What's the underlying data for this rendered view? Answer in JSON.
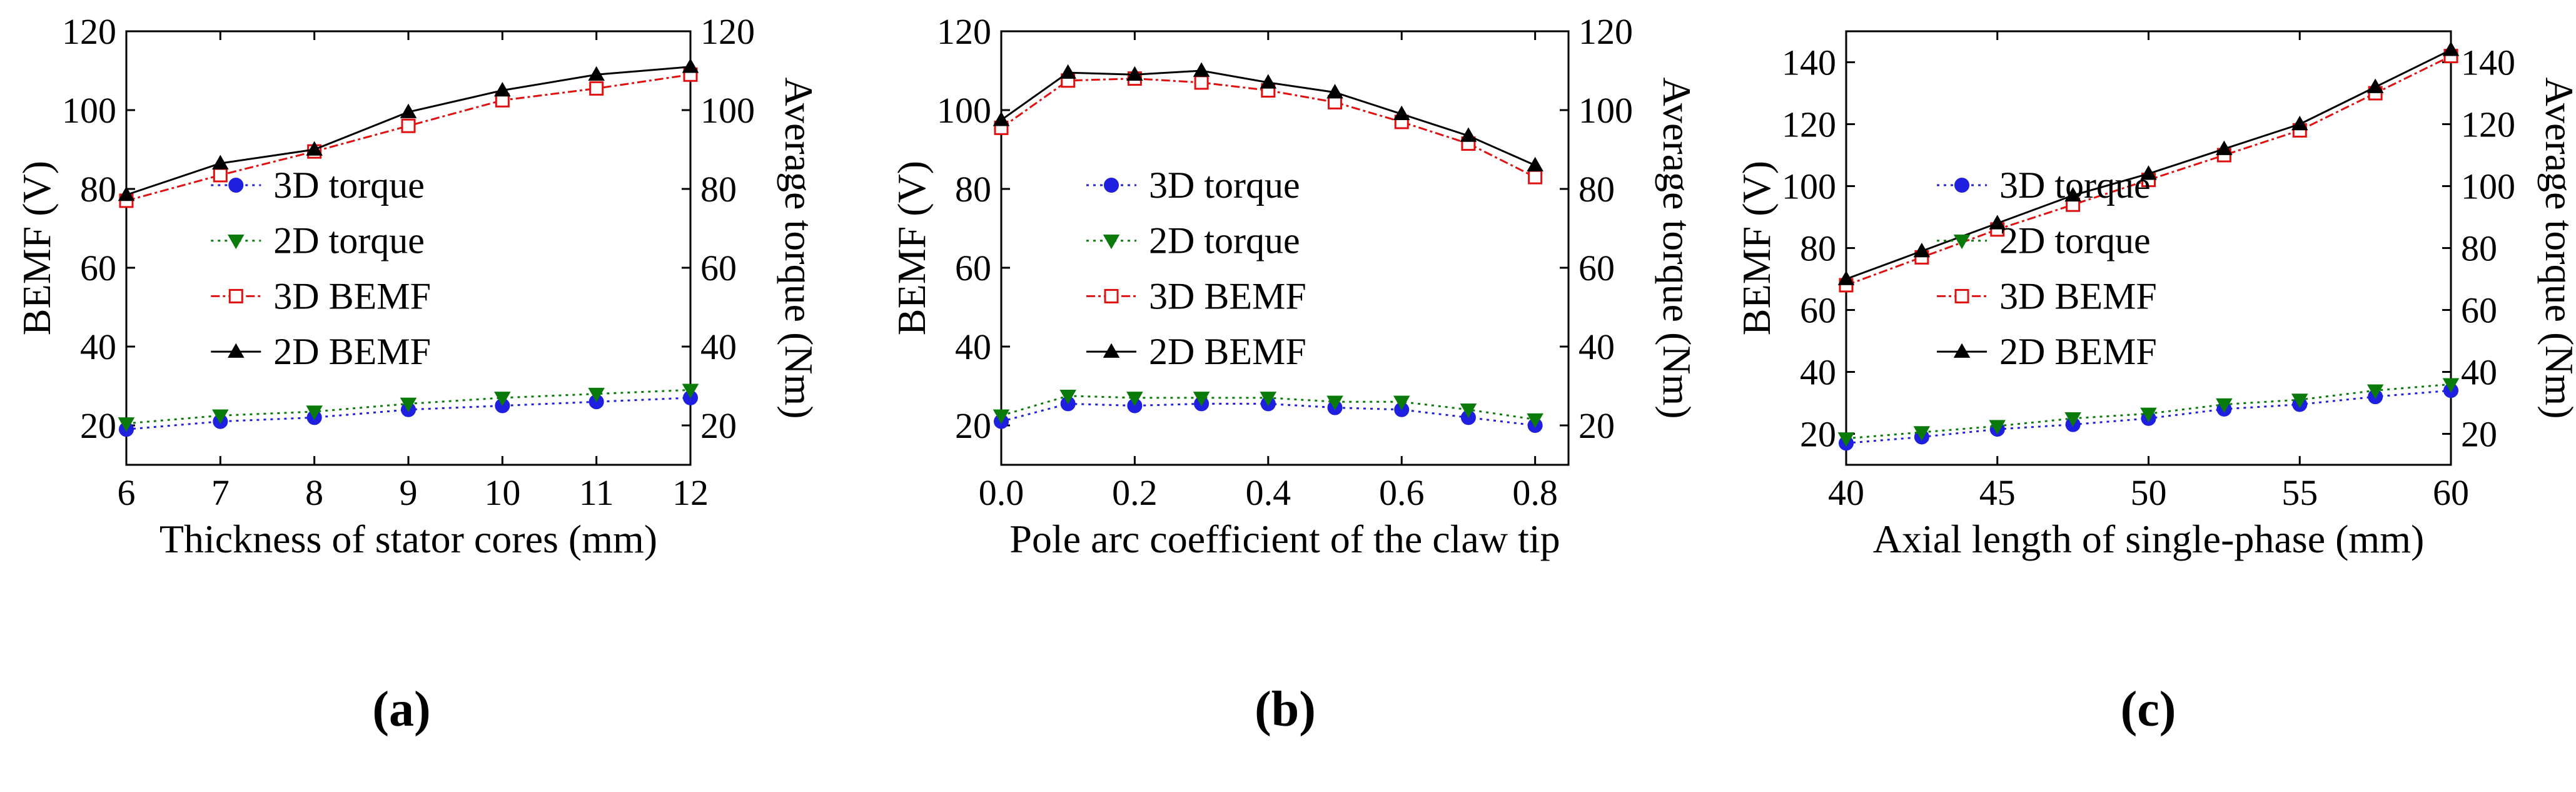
{
  "figure": {
    "captions": [
      "(a)",
      "(b)",
      "(c)"
    ]
  },
  "colors": {
    "torque3d": "#1f1fe0",
    "torque2d": "#0a7a0a",
    "bemf3d": "#e01010",
    "bemf2d": "#000000"
  },
  "chart_data": [
    {
      "id": "a",
      "type": "line",
      "caption": "(a)",
      "xlabel": "Thickness of stator cores (mm)",
      "ylabel": "BEMF (V)",
      "y2label": "Average torque (Nm)",
      "x": [
        6,
        7,
        8,
        9,
        10,
        11,
        12
      ],
      "xlim": [
        6,
        12
      ],
      "xticks": [
        6,
        7,
        8,
        9,
        10,
        11,
        12
      ],
      "xtick_labels": [
        "6",
        "7",
        "8",
        "9",
        "10",
        "11",
        "12"
      ],
      "ylim": [
        10,
        120
      ],
      "yticks": [
        20,
        40,
        60,
        80,
        100,
        120
      ],
      "ytick_labels": [
        "20",
        "40",
        "60",
        "80",
        "100",
        "120"
      ],
      "y2lim": [
        10,
        120
      ],
      "y2ticks": [
        20,
        40,
        60,
        80,
        100,
        120
      ],
      "y2tick_labels": [
        "20",
        "40",
        "60",
        "80",
        "100",
        "120"
      ],
      "legend_position": "center",
      "series": [
        {
          "name": "3D torque",
          "axis": "y2",
          "style": "torque3d",
          "values": [
            19,
            21,
            22,
            24,
            25,
            26,
            27
          ]
        },
        {
          "name": "2D torque",
          "axis": "y2",
          "style": "torque2d",
          "values": [
            20.5,
            22.5,
            23.5,
            25.5,
            27,
            28,
            29
          ]
        },
        {
          "name": "3D BEMF",
          "axis": "y",
          "style": "bemf3d",
          "values": [
            77,
            83.5,
            89.5,
            96,
            102.5,
            105.5,
            109
          ]
        },
        {
          "name": "2D BEMF",
          "axis": "y",
          "style": "bemf2d",
          "values": [
            78.5,
            86.5,
            90,
            99.5,
            105,
            109,
            111
          ]
        }
      ]
    },
    {
      "id": "b",
      "type": "line",
      "caption": "(b)",
      "xlabel": "Pole arc coefficient of the claw tip",
      "ylabel": "BEMF (V)",
      "y2label": "Average torque (Nm)",
      "x": [
        0.0,
        0.1,
        0.2,
        0.3,
        0.4,
        0.5,
        0.6,
        0.7,
        0.8
      ],
      "xlim": [
        0.0,
        0.85
      ],
      "xticks": [
        0.0,
        0.2,
        0.4,
        0.6,
        0.8
      ],
      "xtick_labels": [
        "0.0",
        "0.2",
        "0.4",
        "0.6",
        "0.8"
      ],
      "ylim": [
        10,
        120
      ],
      "yticks": [
        20,
        40,
        60,
        80,
        100,
        120
      ],
      "ytick_labels": [
        "20",
        "40",
        "60",
        "80",
        "100",
        "120"
      ],
      "y2lim": [
        10,
        120
      ],
      "y2ticks": [
        20,
        40,
        60,
        80,
        100,
        120
      ],
      "y2tick_labels": [
        "20",
        "40",
        "60",
        "80",
        "100",
        "120"
      ],
      "legend_position": "center",
      "series": [
        {
          "name": "3D torque",
          "axis": "y2",
          "style": "torque3d",
          "values": [
            21,
            25.5,
            25,
            25.5,
            25.5,
            24.5,
            24,
            22,
            20
          ]
        },
        {
          "name": "2D torque",
          "axis": "y2",
          "style": "torque2d",
          "values": [
            22.5,
            27.5,
            27,
            27,
            27,
            26,
            26,
            24,
            21.5
          ]
        },
        {
          "name": "3D BEMF",
          "axis": "y",
          "style": "bemf3d",
          "values": [
            95.5,
            107.5,
            108,
            107,
            105,
            102,
            97,
            91.5,
            83
          ]
        },
        {
          "name": "2D BEMF",
          "axis": "y",
          "style": "bemf2d",
          "values": [
            97.5,
            109.5,
            109,
            110,
            107,
            104.5,
            99,
            93.5,
            86
          ]
        }
      ]
    },
    {
      "id": "c",
      "type": "line",
      "caption": "(c)",
      "xlabel": "Axial length of single-phase (mm)",
      "ylabel": "BEMF (V)",
      "y2label": "Average torque (Nm)",
      "x": [
        40,
        42.5,
        45,
        47.5,
        50,
        52.5,
        55,
        57.5,
        60
      ],
      "xlim": [
        40,
        60
      ],
      "xticks": [
        40,
        45,
        50,
        55,
        60
      ],
      "xtick_labels": [
        "40",
        "45",
        "50",
        "55",
        "60"
      ],
      "ylim": [
        10,
        150
      ],
      "yticks": [
        20,
        40,
        60,
        80,
        100,
        120,
        140
      ],
      "ytick_labels": [
        "20",
        "40",
        "60",
        "80",
        "100",
        "120",
        "140"
      ],
      "y2lim": [
        10,
        150
      ],
      "y2ticks": [
        20,
        40,
        60,
        80,
        100,
        120,
        140
      ],
      "y2tick_labels": [
        "20",
        "40",
        "60",
        "80",
        "100",
        "120",
        "140"
      ],
      "legend_position": "center",
      "series": [
        {
          "name": "3D torque",
          "axis": "y2",
          "style": "torque3d",
          "values": [
            17,
            19,
            21.5,
            23,
            25,
            28,
            29.5,
            32,
            34
          ]
        },
        {
          "name": "2D torque",
          "axis": "y2",
          "style": "torque2d",
          "values": [
            18.5,
            20.5,
            22.5,
            25,
            26.5,
            29.5,
            31,
            34,
            36
          ]
        },
        {
          "name": "3D BEMF",
          "axis": "y",
          "style": "bemf3d",
          "values": [
            68,
            77,
            86,
            94,
            102,
            110,
            118,
            130,
            142
          ]
        },
        {
          "name": "2D BEMF",
          "axis": "y",
          "style": "bemf2d",
          "values": [
            70,
            79,
            88,
            97,
            104,
            112,
            120,
            132,
            144
          ]
        }
      ]
    }
  ]
}
